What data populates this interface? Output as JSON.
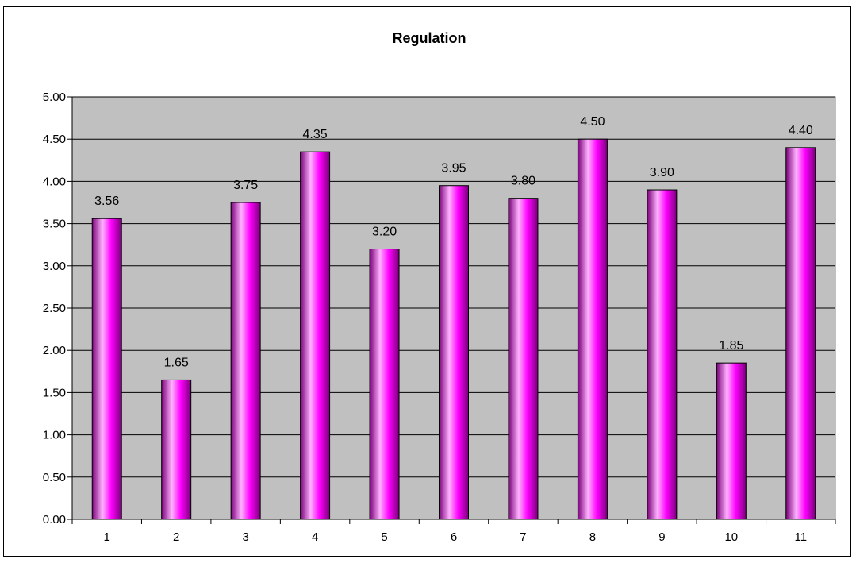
{
  "chart_data": {
    "type": "bar",
    "title": "Regulation",
    "xlabel": "",
    "ylabel": "",
    "categories": [
      "1",
      "2",
      "3",
      "4",
      "5",
      "6",
      "7",
      "8",
      "9",
      "10",
      "11"
    ],
    "values": [
      3.56,
      1.65,
      3.75,
      4.35,
      3.2,
      3.95,
      3.8,
      4.5,
      3.9,
      1.85,
      4.4
    ],
    "data_labels": [
      "3.56",
      "1.65",
      "3.75",
      "4.35",
      "3.20",
      "3.95",
      "3.80",
      "4.50",
      "3.90",
      "1.85",
      "4.40"
    ],
    "ylim": [
      0,
      5
    ],
    "yticks": [
      "0.00",
      "0.50",
      "1.00",
      "1.50",
      "2.00",
      "2.50",
      "3.00",
      "3.50",
      "4.00",
      "4.50",
      "5.00"
    ],
    "grid": true,
    "legend": "none",
    "colors": {
      "bar": "#ff00ff",
      "bar_highlight": "#ffb3ff",
      "bar_shadow": "#7a007a",
      "plot_background": "#c0c0c0",
      "grid": "#000000"
    }
  }
}
